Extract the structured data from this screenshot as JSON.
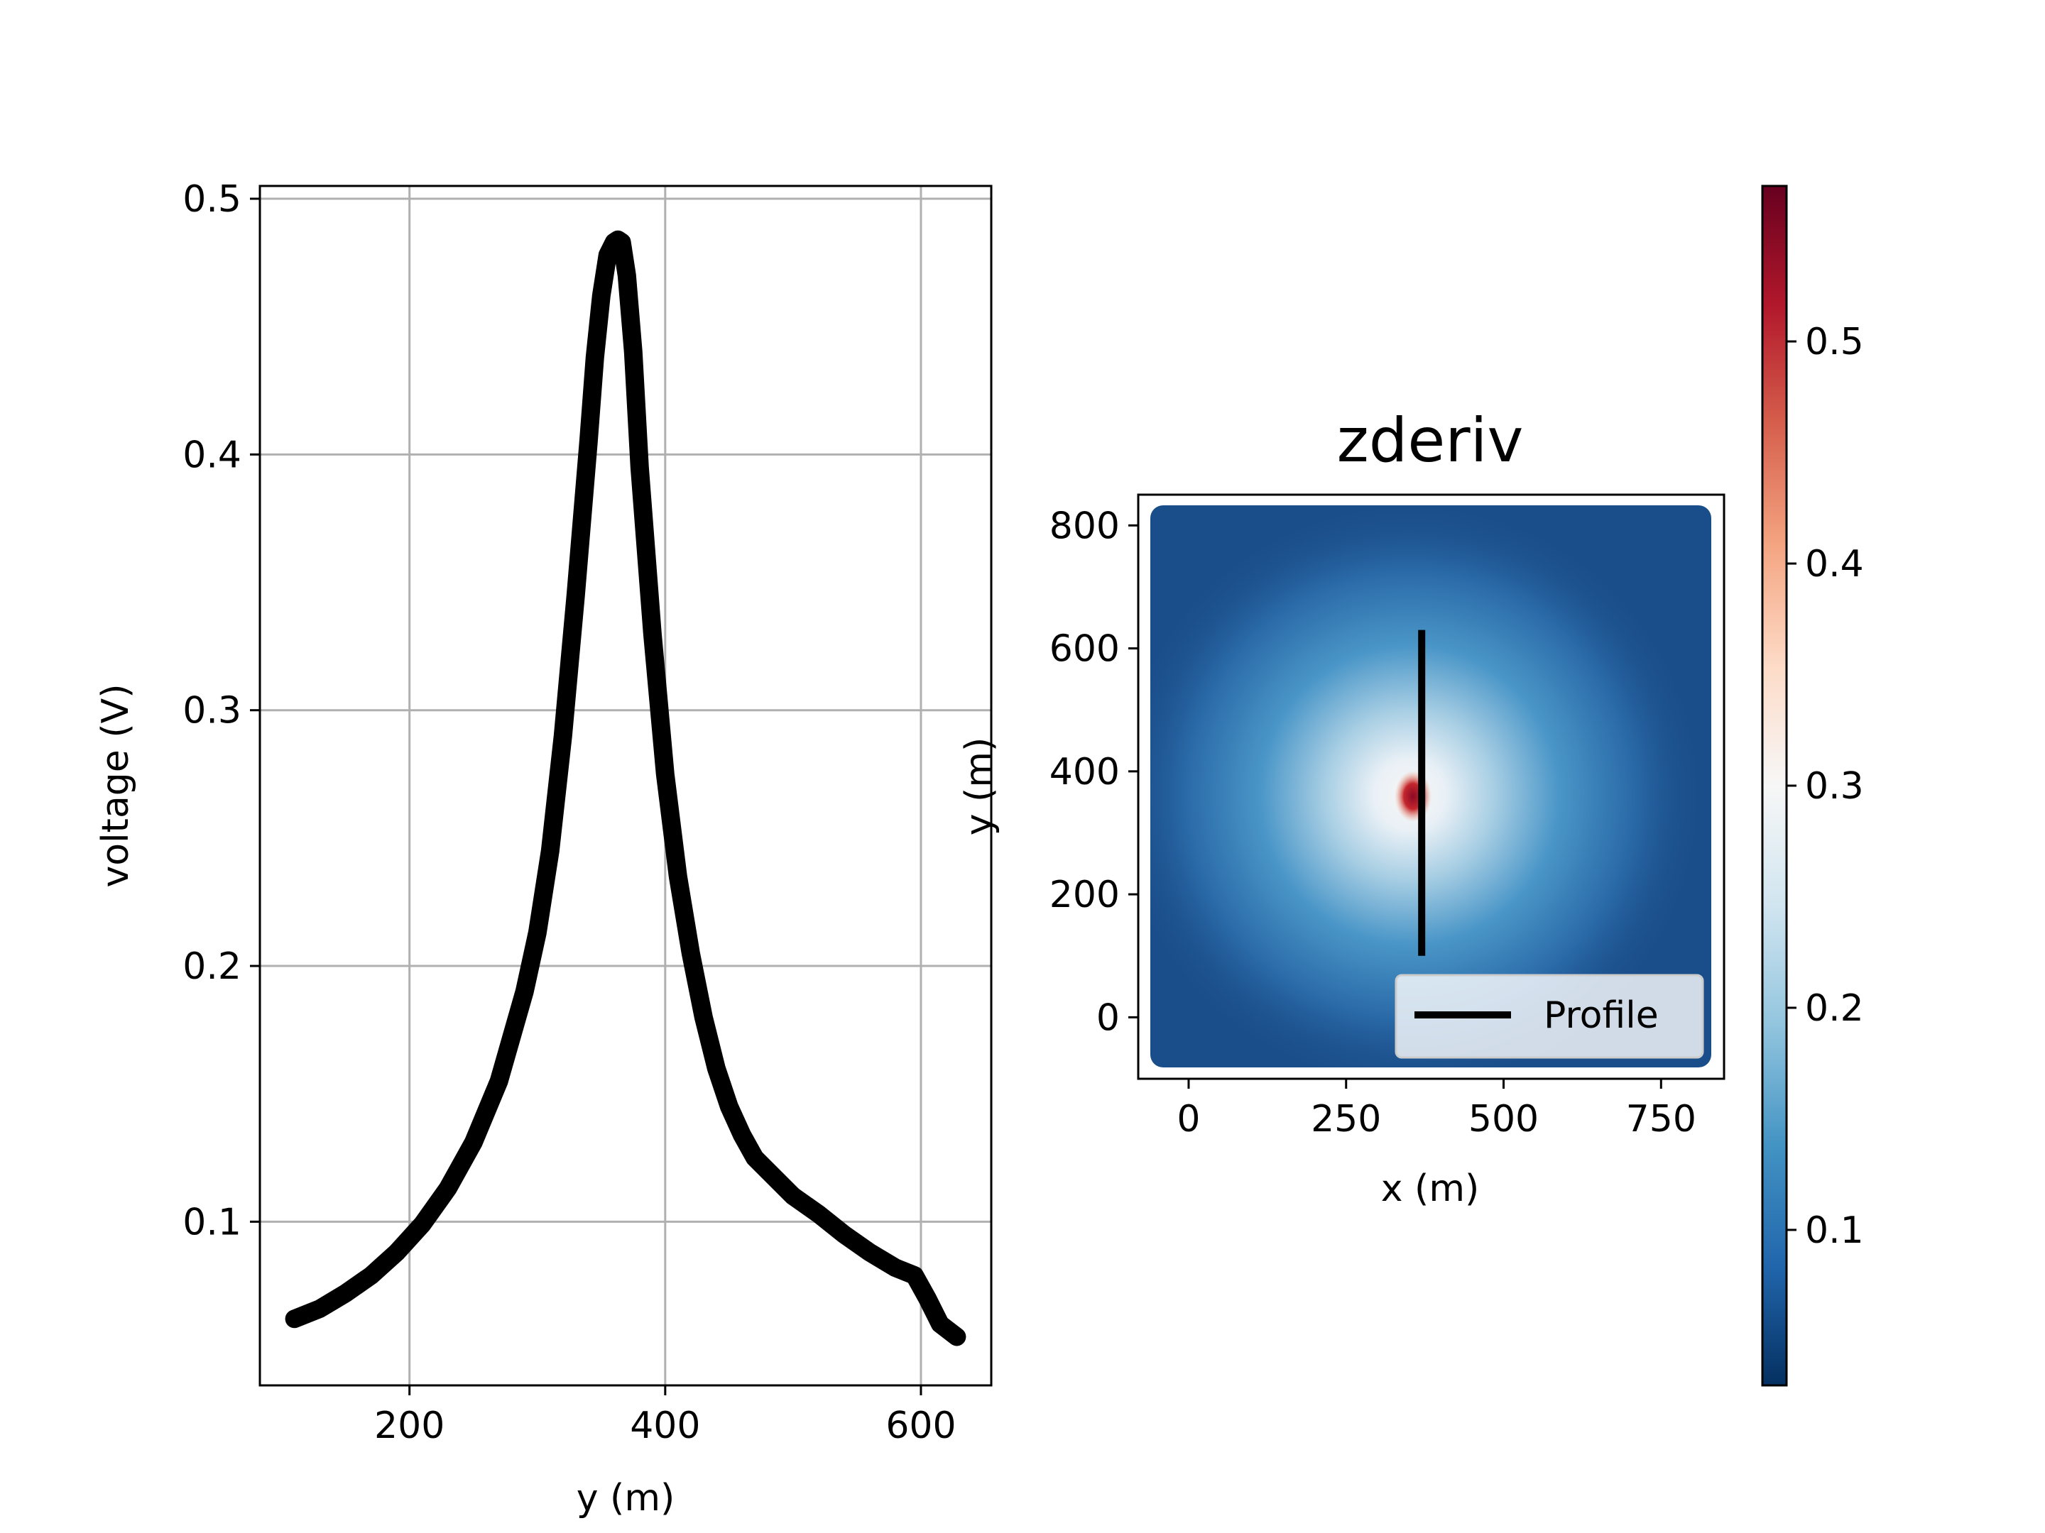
{
  "chart_data": [
    {
      "type": "line",
      "title": "",
      "xlabel": "y (m)",
      "ylabel": "voltage (V)",
      "xlim": [
        83,
        655
      ],
      "ylim": [
        0.036,
        0.505
      ],
      "xticks": [
        "200",
        "400",
        "600"
      ],
      "xtick_values": [
        200,
        400,
        600
      ],
      "yticks": [
        "0.1",
        "0.2",
        "0.3",
        "0.4",
        "0.5"
      ],
      "ytick_values": [
        0.1,
        0.2,
        0.3,
        0.4,
        0.5
      ],
      "grid": true,
      "color": "#000000",
      "series": [
        {
          "x": [
            110,
            130,
            150,
            170,
            190,
            210,
            230,
            250,
            270,
            290,
            300,
            310,
            320,
            330,
            340,
            345,
            350,
            355,
            360,
            363,
            366,
            370,
            375,
            380,
            390,
            400,
            410,
            420,
            430,
            440,
            450,
            460,
            470,
            480,
            490,
            500,
            520,
            540,
            560,
            580,
            595,
            605,
            615,
            628
          ],
          "y": [
            0.062,
            0.066,
            0.072,
            0.079,
            0.088,
            0.099,
            0.113,
            0.131,
            0.155,
            0.19,
            0.213,
            0.245,
            0.29,
            0.345,
            0.405,
            0.438,
            0.462,
            0.478,
            0.483,
            0.484,
            0.483,
            0.47,
            0.44,
            0.395,
            0.33,
            0.275,
            0.235,
            0.205,
            0.18,
            0.16,
            0.145,
            0.134,
            0.125,
            0.12,
            0.115,
            0.11,
            0.103,
            0.095,
            0.088,
            0.082,
            0.079,
            0.07,
            0.06,
            0.055
          ]
        }
      ]
    },
    {
      "type": "heatmap",
      "title": "zderiv",
      "xlabel": "x (m)",
      "ylabel": "y (m)",
      "xlim": [
        -80,
        850
      ],
      "ylim": [
        -100,
        850
      ],
      "xticks": [
        "0",
        "250",
        "500",
        "750"
      ],
      "xtick_values": [
        0,
        250,
        500,
        750
      ],
      "yticks": [
        "0",
        "200",
        "400",
        "600",
        "800"
      ],
      "ytick_values": [
        0,
        200,
        400,
        600,
        800
      ],
      "data_extent": {
        "x": [
          -80,
          830
        ],
        "y": [
          -80,
          830
        ]
      },
      "anomaly_center": {
        "x": 355,
        "y": 355
      },
      "colormap": "RdBu_r",
      "colorbar": {
        "min": 0.03,
        "max": 0.57,
        "ticks": [
          "0.1",
          "0.2",
          "0.3",
          "0.4",
          "0.5"
        ],
        "tick_values": [
          0.1,
          0.2,
          0.3,
          0.4,
          0.5
        ]
      },
      "profile": {
        "x": [
          370,
          370
        ],
        "y": [
          100,
          630
        ],
        "name": "Profile"
      },
      "legend": {
        "label": "Profile",
        "position": "lower right"
      }
    }
  ]
}
